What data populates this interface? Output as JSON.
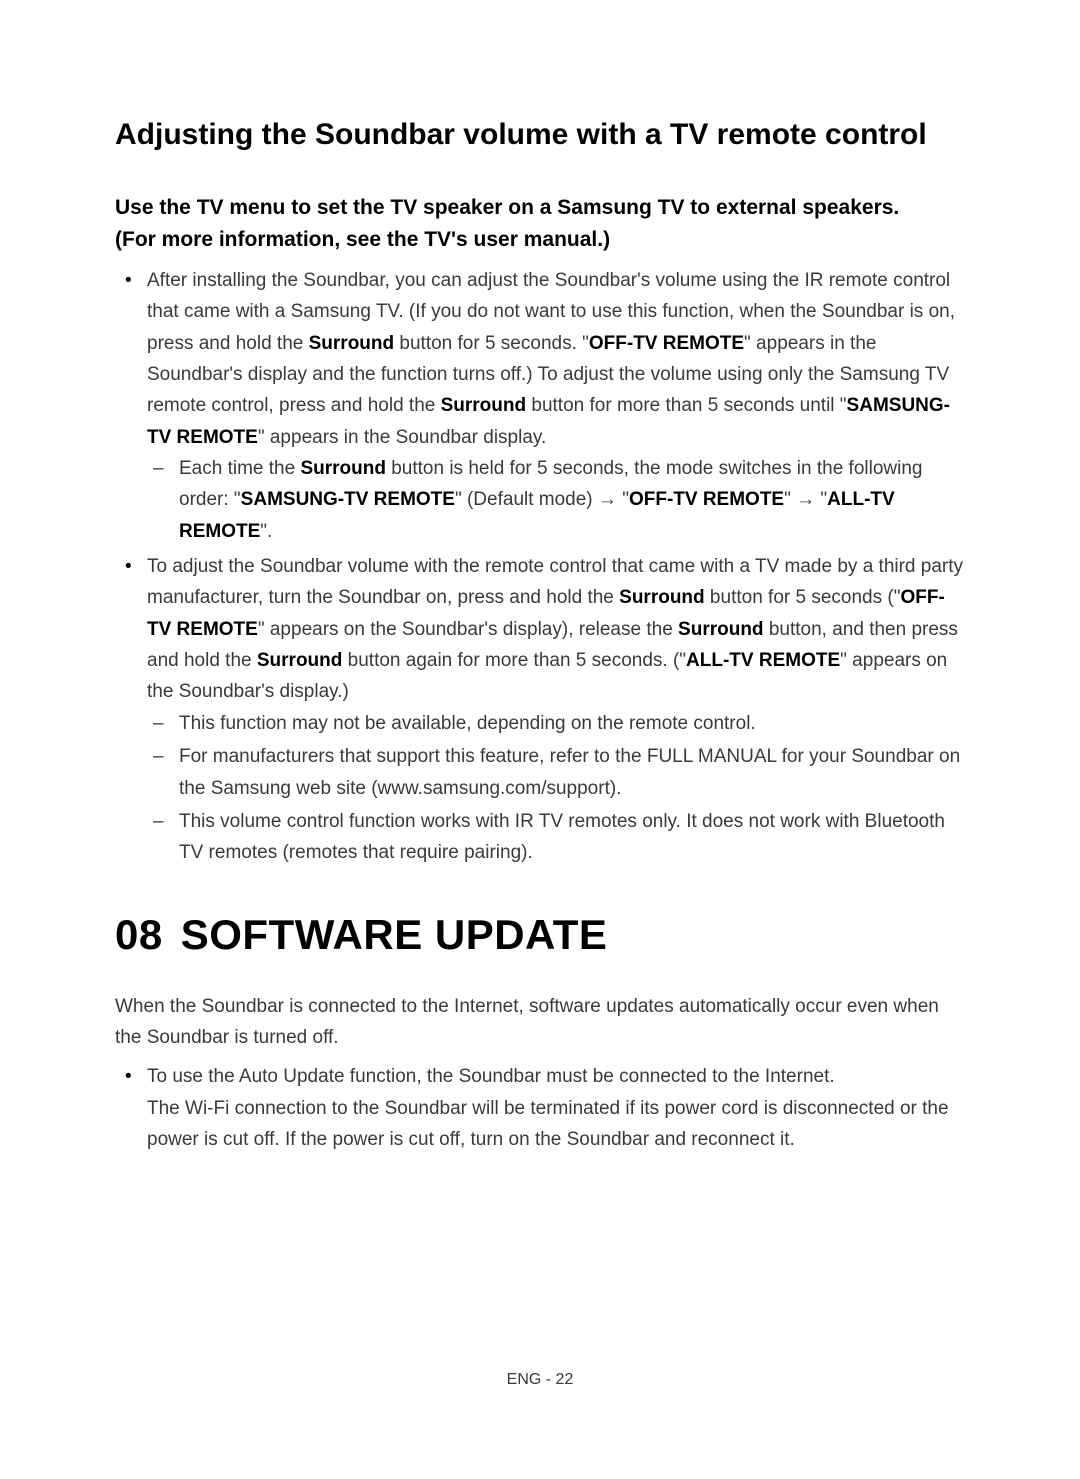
{
  "heading2": "Adjusting the Soundbar volume with a TV remote control",
  "heading3_line1": "Use the TV menu to set the TV speaker on a Samsung TV to external speakers.",
  "heading3_line2": "(For more information, see the TV's user manual.)",
  "b1_pre1": "After installing the Soundbar, you can adjust the Soundbar's volume using the IR remote control that came with a Samsung TV. (If you do not want to use this function, when the Soundbar is on, press and hold the ",
  "b1_bold1": "Surround",
  "b1_mid1": " button for 5 seconds. \"",
  "b1_bold2": "OFF-TV REMOTE",
  "b1_mid2": "\" appears in the Soundbar's display and the function turns off.) To adjust the volume using only the Samsung TV remote control, press and hold the ",
  "b1_bold3": "Surround",
  "b1_mid3": " button for more than 5 seconds until \"",
  "b1_bold4": "SAMSUNG-TV REMOTE",
  "b1_post": "\" appears in the Soundbar display.",
  "b1_d1_pre": "Each time the ",
  "b1_d1_bold1": "Surround",
  "b1_d1_mid1": " button is held for 5 seconds, the mode switches in the following order: \"",
  "b1_d1_bold2": "SAMSUNG-TV REMOTE",
  "b1_d1_mid2": "\" (Default mode) → \"",
  "b1_d1_bold3": "OFF-TV REMOTE",
  "b1_d1_mid3": "\" → \"",
  "b1_d1_bold4": "ALL-TV REMOTE",
  "b1_d1_post": "\".",
  "b2_pre1": "To adjust the Soundbar volume with the remote control that came with a TV made by a third party manufacturer, turn the Soundbar on, press and hold the ",
  "b2_bold1": "Surround",
  "b2_mid1": " button for 5 seconds (\"",
  "b2_bold2": "OFF-TV REMOTE",
  "b2_mid2": "\" appears on the Soundbar's display), release the ",
  "b2_bold3": "Surround",
  "b2_mid3": " button, and then press and hold the ",
  "b2_bold4": "Surround",
  "b2_mid4": " button again for more than 5 seconds. (\"",
  "b2_bold5": "ALL-TV REMOTE",
  "b2_post": "\" appears on the Soundbar's display.)",
  "b2_d1": "This function may not be available, depending on the remote control.",
  "b2_d2": "For manufacturers that support this feature, refer to the FULL MANUAL for your Soundbar on the Samsung web site (www.samsung.com/support).",
  "b2_d3": "This volume control function works with IR TV remotes only. It does not work with Bluetooth TV remotes (remotes that require pairing).",
  "h1_num": "08",
  "h1_title": "SOFTWARE UPDATE",
  "para1": "When the Soundbar is connected to the Internet, software updates automatically occur even when the Soundbar is turned off.",
  "b3_line1": "To use the Auto Update function, the Soundbar must be connected to the Internet.",
  "b3_line2": "The Wi-Fi connection to the Soundbar will be terminated if its power cord is disconnected or the power is cut off. If the power is cut off, turn on the Soundbar and reconnect it.",
  "footer": "ENG - 22"
}
